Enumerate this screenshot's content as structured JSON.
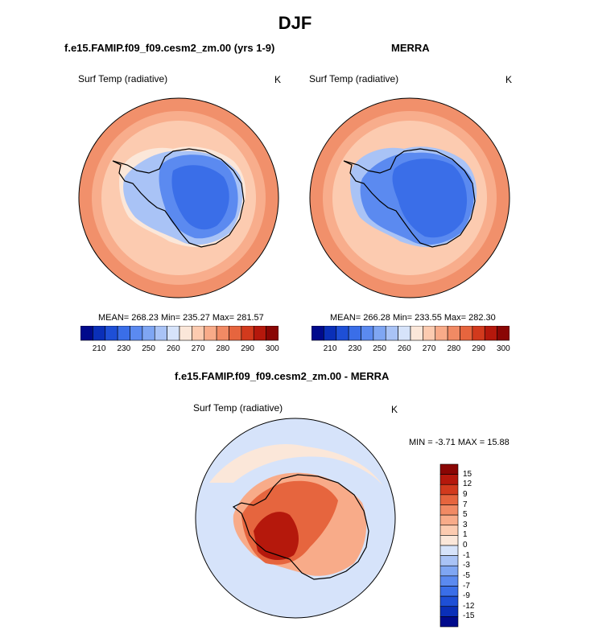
{
  "page_title": "DJF",
  "panels": [
    {
      "title": "f.e15.FAMIP.f09_f09.cesm2_zm.00 (yrs 1-9)",
      "variable": "Surf Temp (radiative)",
      "units": "K",
      "stats": "MEAN= 268.23  Min= 235.27  Max= 281.57"
    },
    {
      "title": "MERRA",
      "variable": "Surf Temp (radiative)",
      "units": "K",
      "stats": "MEAN= 266.28  Min= 233.55  Max= 282.30"
    },
    {
      "title": "f.e15.FAMIP.f09_f09.cesm2_zm.00 - MERRA",
      "variable": "Surf Temp (radiative)",
      "units": "K",
      "stats": "MIN =  -3.71 MAX =  15.88"
    }
  ],
  "colorbar_abs": {
    "colors": [
      "#000a8c",
      "#0a2fb8",
      "#1e4fd6",
      "#3a6ee8",
      "#5b8af0",
      "#7fa6f3",
      "#a9c3f6",
      "#d6e3fa",
      "#fbe7d9",
      "#fccbb0",
      "#f8ab89",
      "#f18a64",
      "#e6653e",
      "#d23a1d",
      "#b5180c",
      "#8a0604"
    ],
    "tick_labels": [
      "210",
      "230",
      "250",
      "260",
      "270",
      "280",
      "290",
      "300"
    ]
  },
  "colorbar_diff": {
    "colors": [
      "#8a0604",
      "#b5180c",
      "#d23a1d",
      "#e6653e",
      "#f18a64",
      "#f8ab89",
      "#fccbb0",
      "#fbe7d9",
      "#d6e3fa",
      "#a9c3f6",
      "#7fa6f3",
      "#5b8af0",
      "#3a6ee8",
      "#1e4fd6",
      "#0a2fb8",
      "#000a8c"
    ],
    "tick_labels": [
      "15",
      "12",
      "9",
      "7",
      "5",
      "3",
      "1",
      "0",
      "-1",
      "-3",
      "-5",
      "-7",
      "-9",
      "-12",
      "-15"
    ]
  }
}
